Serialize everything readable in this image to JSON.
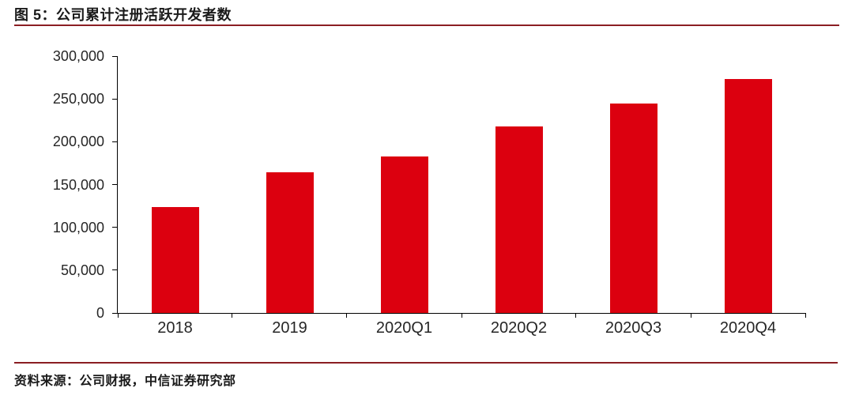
{
  "figure": {
    "title": "图 5：公司累计注册活跃开发者数",
    "source": "资料来源：公司财报，中信证券研究部"
  },
  "colors": {
    "bar": "#dc000f",
    "rule": "#8b1e23",
    "axis_line": "#000000",
    "axis_text": "#262626",
    "title_text": "#1a1a1a",
    "background": "#ffffff"
  },
  "chart_data": {
    "type": "bar",
    "title": "公司累计注册活跃开发者数",
    "categories": [
      "2018",
      "2019",
      "2020Q1",
      "2020Q2",
      "2020Q3",
      "2020Q4"
    ],
    "values": [
      124000,
      164000,
      183000,
      218000,
      245000,
      273000
    ],
    "xlabel": "",
    "ylabel": "",
    "ylim": [
      0,
      300000
    ],
    "ytick_step": 50000,
    "ytick_labels": [
      "0",
      "50,000",
      "100,000",
      "150,000",
      "200,000",
      "250,000",
      "300,000"
    ],
    "grid": false,
    "legend": "none",
    "bar_color": "#dc000f"
  }
}
